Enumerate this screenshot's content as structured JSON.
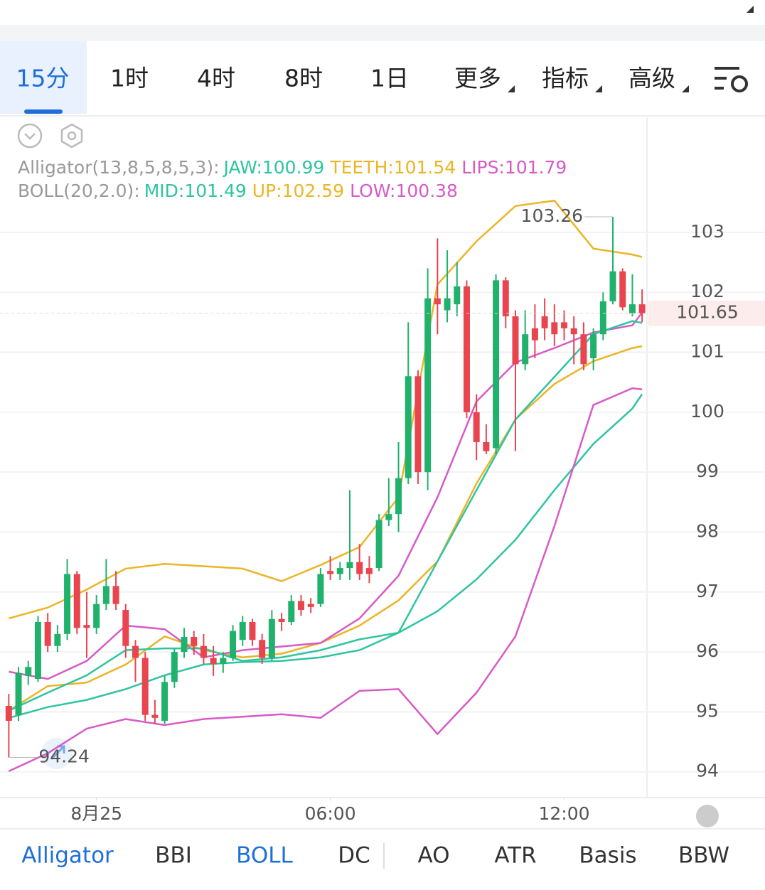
{
  "tabs": [
    "15分",
    "1时",
    "4时",
    "8时",
    "1日",
    "更多",
    "指标",
    "高级"
  ],
  "bottom_tabs": [
    "Alligator",
    "BBI",
    "BOLL",
    "DC",
    "AO",
    "ATR",
    "Basis",
    "BBW"
  ],
  "chart_data": {
    "type": "candlestick",
    "x": [
      0,
      1,
      2,
      3,
      4,
      5,
      6,
      7,
      8,
      9,
      10,
      11,
      12,
      13,
      14,
      15,
      16,
      17,
      18,
      19,
      20,
      21,
      22,
      23,
      24,
      25,
      26,
      27,
      28,
      29,
      30,
      31,
      32,
      33,
      34,
      35,
      36,
      37,
      38,
      39,
      40,
      41,
      42,
      43,
      44,
      45,
      46,
      47,
      48,
      49,
      50,
      51,
      52,
      53,
      54,
      55,
      56,
      57,
      58,
      59,
      60,
      61,
      62,
      63,
      64,
      65
    ],
    "open": [
      95.1,
      94.95,
      95.6,
      95.55,
      96.5,
      96.1,
      96.3,
      97.3,
      96.45,
      96.4,
      96.8,
      97.1,
      96.7,
      96.1,
      95.9,
      94.95,
      94.85,
      95.5,
      96.0,
      96.25,
      96.1,
      95.9,
      95.8,
      95.9,
      96.2,
      96.5,
      96.2,
      95.9,
      96.55,
      96.5,
      96.85,
      96.8,
      96.8,
      97.35,
      97.3,
      97.4,
      97.5,
      97.4,
      97.4,
      98.2,
      98.3,
      98.9,
      100.6,
      99.0,
      101.9,
      101.7,
      101.8,
      102.1,
      100.0,
      99.5,
      99.4,
      102.2,
      101.6,
      100.8,
      101.4,
      101.6,
      101.5,
      101.5,
      101.4,
      101.3,
      100.9,
      101.3,
      101.85,
      102.35,
      101.65,
      101.8
    ],
    "high": [
      95.3,
      95.75,
      95.85,
      96.6,
      96.65,
      96.45,
      97.55,
      97.35,
      97.0,
      96.95,
      97.55,
      97.35,
      96.8,
      96.2,
      96.0,
      95.2,
      95.6,
      96.05,
      96.4,
      96.35,
      96.3,
      96.1,
      96.0,
      96.45,
      96.6,
      96.55,
      96.3,
      96.7,
      96.65,
      96.95,
      96.95,
      96.9,
      97.4,
      97.6,
      97.5,
      98.7,
      97.8,
      97.6,
      98.3,
      98.9,
      99.5,
      101.5,
      100.7,
      102.4,
      102.9,
      102.7,
      102.5,
      102.2,
      100.3,
      99.8,
      102.3,
      102.25,
      101.7,
      101.7,
      101.8,
      101.9,
      101.8,
      101.7,
      101.6,
      101.5,
      101.4,
      102.0,
      103.26,
      102.4,
      102.3,
      102.05
    ],
    "low": [
      94.24,
      94.85,
      95.45,
      95.5,
      96.0,
      96.0,
      96.2,
      96.3,
      95.9,
      96.3,
      96.7,
      96.7,
      95.9,
      95.5,
      94.85,
      94.8,
      94.8,
      95.4,
      95.9,
      95.95,
      95.8,
      95.6,
      95.65,
      95.85,
      96.1,
      96.1,
      95.8,
      95.85,
      96.35,
      96.45,
      96.6,
      96.65,
      96.75,
      97.2,
      97.2,
      97.2,
      97.2,
      97.15,
      97.35,
      98.1,
      98.0,
      98.8,
      98.8,
      98.7,
      101.3,
      101.5,
      101.6,
      99.9,
      99.2,
      99.3,
      99.3,
      101.4,
      99.35,
      100.7,
      100.9,
      101.2,
      101.1,
      101.2,
      100.8,
      100.7,
      100.7,
      101.2,
      101.8,
      101.7,
      101.6,
      101.5
    ],
    "close": [
      94.85,
      95.65,
      95.75,
      96.5,
      96.1,
      96.3,
      97.3,
      96.4,
      96.4,
      96.8,
      97.1,
      96.8,
      96.1,
      95.9,
      94.95,
      94.9,
      95.5,
      96.0,
      96.25,
      96.1,
      95.9,
      95.8,
      95.9,
      96.35,
      96.5,
      96.2,
      95.9,
      96.55,
      96.5,
      96.85,
      96.7,
      96.75,
      97.3,
      97.3,
      97.4,
      97.5,
      97.3,
      97.3,
      98.2,
      98.3,
      98.9,
      100.6,
      99.0,
      101.9,
      101.8,
      101.9,
      102.1,
      100.0,
      99.5,
      99.35,
      102.2,
      101.6,
      100.8,
      101.3,
      101.2,
      101.4,
      101.3,
      101.4,
      101.3,
      100.8,
      101.3,
      101.85,
      102.35,
      101.75,
      101.8,
      101.65
    ],
    "up_color": "#20b26c",
    "down_color": "#e8454f",
    "xlim": [
      -0.9,
      65.5
    ],
    "xticks": [
      {
        "value": 9,
        "label": "8月25"
      },
      {
        "value": 33,
        "label": "06:00"
      },
      {
        "value": 57,
        "label": "12:00"
      }
    ],
    "ylim": [
      93.57,
      104.92
    ],
    "yticks": [
      94,
      95,
      96,
      97,
      98,
      99,
      100,
      101,
      102,
      103
    ],
    "grid": true,
    "max_label": 103.26,
    "min_label": 94.24,
    "last_price": 101.65,
    "indicators": [
      {
        "label": "Alligator(13,8,5,8,5,3):",
        "series": [
          {
            "name": "JAW:100.99",
            "color": "#2ec4a2",
            "x": [
              0,
              4,
              8,
              12,
              16,
              20,
              24,
              28,
              32,
              36,
              40,
              44,
              48,
              52,
              56,
              60,
              64,
              65
            ],
            "values": [
              94.9,
              95.08,
              95.2,
              95.38,
              95.61,
              95.79,
              95.83,
              95.85,
              95.91,
              96.03,
              96.32,
              96.68,
              97.21,
              97.87,
              98.7,
              99.47,
              100.06,
              100.3
            ]
          },
          {
            "name": "TEETH:101.54",
            "color": "#eab526",
            "x": [
              0,
              4,
              8,
              12,
              16,
              20,
              24,
              28,
              32,
              36,
              40,
              44,
              48,
              52,
              56,
              60,
              64,
              65
            ],
            "values": [
              95.02,
              95.43,
              95.49,
              95.79,
              96.26,
              96.03,
              95.91,
              95.97,
              96.15,
              96.44,
              96.86,
              97.51,
              98.81,
              99.88,
              100.47,
              100.85,
              101.07,
              101.1
            ]
          },
          {
            "name": "LIPS:101.79",
            "color": "#d75ac6",
            "x": [
              0,
              4,
              8,
              12,
              16,
              20,
              24,
              28,
              32,
              36,
              40,
              44,
              48,
              52,
              56,
              60,
              64,
              65
            ],
            "values": [
              95.67,
              95.55,
              95.85,
              96.44,
              96.38,
              95.91,
              96.03,
              96.09,
              96.15,
              96.56,
              97.27,
              98.58,
              100.18,
              100.83,
              101.07,
              101.33,
              101.45,
              101.66
            ]
          }
        ]
      },
      {
        "label": "BOLL(20,2.0):",
        "series": [
          {
            "name": "MID:101.49",
            "color": "#2ec4a2",
            "x": [
              0,
              4,
              8,
              12,
              16,
              20,
              24,
              28,
              32,
              36,
              40,
              44,
              48,
              52,
              56,
              60,
              64,
              65
            ],
            "values": [
              95.02,
              95.32,
              95.61,
              96.03,
              96.06,
              96.06,
              95.85,
              95.91,
              96.03,
              96.21,
              96.32,
              97.51,
              98.7,
              99.88,
              100.59,
              101.3,
              101.52,
              101.49
            ]
          },
          {
            "name": "UP:102.59",
            "color": "#eab526",
            "x": [
              0,
              4,
              8,
              12,
              16,
              20,
              24,
              28,
              32,
              36,
              40,
              44,
              48,
              52,
              56,
              60,
              64,
              65
            ],
            "values": [
              96.56,
              96.74,
              97.04,
              97.39,
              97.47,
              97.43,
              97.39,
              97.18,
              97.45,
              97.75,
              98.58,
              102.13,
              102.85,
              103.44,
              103.53,
              102.73,
              102.63,
              102.59
            ]
          },
          {
            "name": "LOW:100.38",
            "color": "#d75ac6",
            "x": [
              0,
              4,
              8,
              12,
              16,
              20,
              24,
              28,
              32,
              36,
              40,
              44,
              48,
              52,
              56,
              60,
              64,
              65
            ],
            "values": [
              94.01,
              94.31,
              94.72,
              94.88,
              94.78,
              94.88,
              94.92,
              94.96,
              94.9,
              95.35,
              95.38,
              94.63,
              95.32,
              96.26,
              98.1,
              100.12,
              100.4,
              100.38
            ]
          }
        ]
      }
    ]
  }
}
